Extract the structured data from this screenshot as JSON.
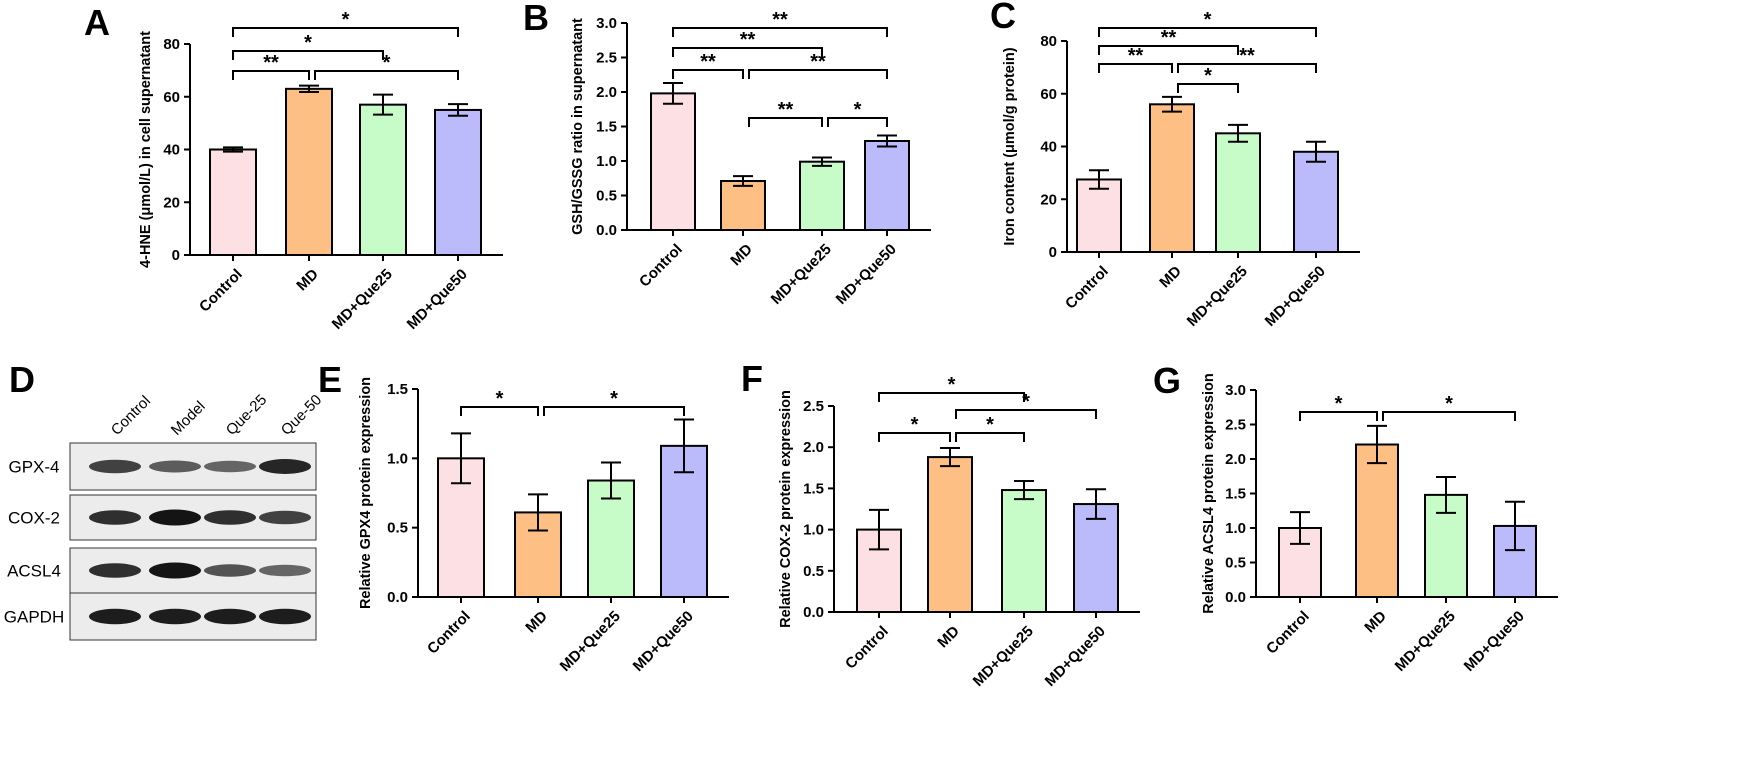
{
  "figure": {
    "blot": {
      "letter": "D",
      "lanes": [
        "Control",
        "Model",
        "Que-25",
        "Que-50"
      ],
      "rows": [
        {
          "label": "GPX-4",
          "intensity": [
            0.75,
            0.6,
            0.55,
            0.9
          ]
        },
        {
          "label": "COX-2",
          "intensity": [
            0.85,
            1.0,
            0.85,
            0.75
          ]
        },
        {
          "label": "ACSL4",
          "intensity": [
            0.85,
            1.0,
            0.65,
            0.55
          ]
        },
        {
          "label": "GAPDH",
          "intensity": [
            0.95,
            0.95,
            0.95,
            0.95
          ]
        }
      ]
    }
  },
  "chart_data": [
    {
      "letter": "A",
      "type": "bar",
      "categories": [
        "Control",
        "MD",
        "MD+Que25",
        "MD+Que50"
      ],
      "values": [
        40,
        63,
        57,
        55
      ],
      "errors": [
        0.8,
        1.2,
        3.8,
        2.2
      ],
      "ylabel": "4-HNE (μmol/L) in cell supernatant",
      "ylim": [
        0,
        80
      ],
      "yticks": [
        "0",
        "20",
        "40",
        "60",
        "80"
      ],
      "colors": [
        "#fce0e3",
        "#fdbf84",
        "#c7fcc9",
        "#bbbbfb"
      ],
      "significance": [
        {
          "from": 0,
          "to": 1,
          "label": "**"
        },
        {
          "from": 0,
          "to": 2,
          "label": "*"
        },
        {
          "from": 0,
          "to": 3,
          "label": "*"
        },
        {
          "from": 1,
          "to": 3,
          "label": "*"
        }
      ]
    },
    {
      "letter": "B",
      "type": "bar",
      "categories": [
        "Control",
        "MD",
        "MD+Que25",
        "MD+Que50"
      ],
      "values": [
        1.98,
        0.71,
        0.99,
        1.29
      ],
      "errors": [
        0.15,
        0.07,
        0.06,
        0.08
      ],
      "ylabel": "GSH/GSSG ratio in supernatant",
      "ylim": [
        0,
        3
      ],
      "yticks": [
        "0.0",
        "0.5",
        "1.0",
        "1.5",
        "2.0",
        "2.5",
        "3.0"
      ],
      "colors": [
        "#fce0e3",
        "#fdbf84",
        "#c7fcc9",
        "#bbbbfb"
      ],
      "significance": [
        {
          "from": 0,
          "to": 1,
          "label": "**"
        },
        {
          "from": 0,
          "to": 2,
          "label": "**"
        },
        {
          "from": 0,
          "to": 3,
          "label": "**"
        },
        {
          "from": 1,
          "to": 3,
          "label": "**"
        },
        {
          "from": 1,
          "to": 2,
          "label": "**"
        },
        {
          "from": 2,
          "to": 3,
          "label": "*"
        }
      ]
    },
    {
      "letter": "C",
      "type": "bar",
      "categories": [
        "Control",
        "MD",
        "MD+Que25",
        "MD+Que50"
      ],
      "values": [
        27.5,
        56,
        45,
        38
      ],
      "errors": [
        3.5,
        2.8,
        3.2,
        3.8
      ],
      "ylabel": "Iron content (μmol/g protein)",
      "ylim": [
        0,
        80
      ],
      "yticks": [
        "0",
        "20",
        "40",
        "60",
        "80"
      ],
      "colors": [
        "#fce0e3",
        "#fdbf84",
        "#c7fcc9",
        "#bbbbfb"
      ],
      "significance": [
        {
          "from": 0,
          "to": 3,
          "label": "*"
        },
        {
          "from": 0,
          "to": 2,
          "label": "**"
        },
        {
          "from": 0,
          "to": 1,
          "label": "**"
        },
        {
          "from": 1,
          "to": 3,
          "label": "**"
        },
        {
          "from": 1,
          "to": 2,
          "label": "*"
        }
      ]
    },
    {
      "letter": "E",
      "type": "bar",
      "categories": [
        "Control",
        "MD",
        "MD+Que25",
        "MD+Que50"
      ],
      "values": [
        1.0,
        0.61,
        0.84,
        1.09
      ],
      "errors": [
        0.18,
        0.13,
        0.13,
        0.19
      ],
      "ylabel": "Relative  GPX4 protein expression",
      "ylim": [
        0,
        1.5
      ],
      "yticks": [
        "0.0",
        "0.5",
        "1.0",
        "1.5"
      ],
      "colors": [
        "#fce0e3",
        "#fdbf84",
        "#c7fcc9",
        "#bbbbfb"
      ],
      "significance": [
        {
          "from": 0,
          "to": 1,
          "label": "*"
        },
        {
          "from": 1,
          "to": 3,
          "label": "*"
        }
      ]
    },
    {
      "letter": "F",
      "type": "bar",
      "categories": [
        "Control",
        "MD",
        "MD+Que25",
        "MD+Que50"
      ],
      "values": [
        1.0,
        1.88,
        1.48,
        1.31
      ],
      "errors": [
        0.24,
        0.11,
        0.11,
        0.18
      ],
      "ylabel": "Relative COX-2 protein expression",
      "ylim": [
        0,
        2.5
      ],
      "yticks": [
        "0.0",
        "0.5",
        "1.0",
        "1.5",
        "2.0",
        "2.5"
      ],
      "colors": [
        "#fce0e3",
        "#fdbf84",
        "#c7fcc9",
        "#bbbbfb"
      ],
      "significance": [
        {
          "from": 0,
          "to": 2,
          "label": "*"
        },
        {
          "from": 1,
          "to": 3,
          "label": "*"
        },
        {
          "from": 0,
          "to": 1,
          "label": "*"
        },
        {
          "from": 1,
          "to": 2,
          "label": "*"
        }
      ]
    },
    {
      "letter": "G",
      "type": "bar",
      "categories": [
        "Control",
        "MD",
        "MD+Que25",
        "MD+Que50"
      ],
      "values": [
        1.0,
        2.21,
        1.48,
        1.03
      ],
      "errors": [
        0.23,
        0.27,
        0.26,
        0.35
      ],
      "ylabel": "Relative ACSL4 protein expression",
      "ylim": [
        0,
        3
      ],
      "yticks": [
        "0.0",
        "0.5",
        "1.0",
        "1.5",
        "2.0",
        "2.5",
        "3.0"
      ],
      "colors": [
        "#fce0e3",
        "#fdbf84",
        "#c7fcc9",
        "#bbbbfb"
      ],
      "significance": [
        {
          "from": 0,
          "to": 1,
          "label": "*"
        },
        {
          "from": 1,
          "to": 3,
          "label": "*"
        }
      ]
    }
  ]
}
